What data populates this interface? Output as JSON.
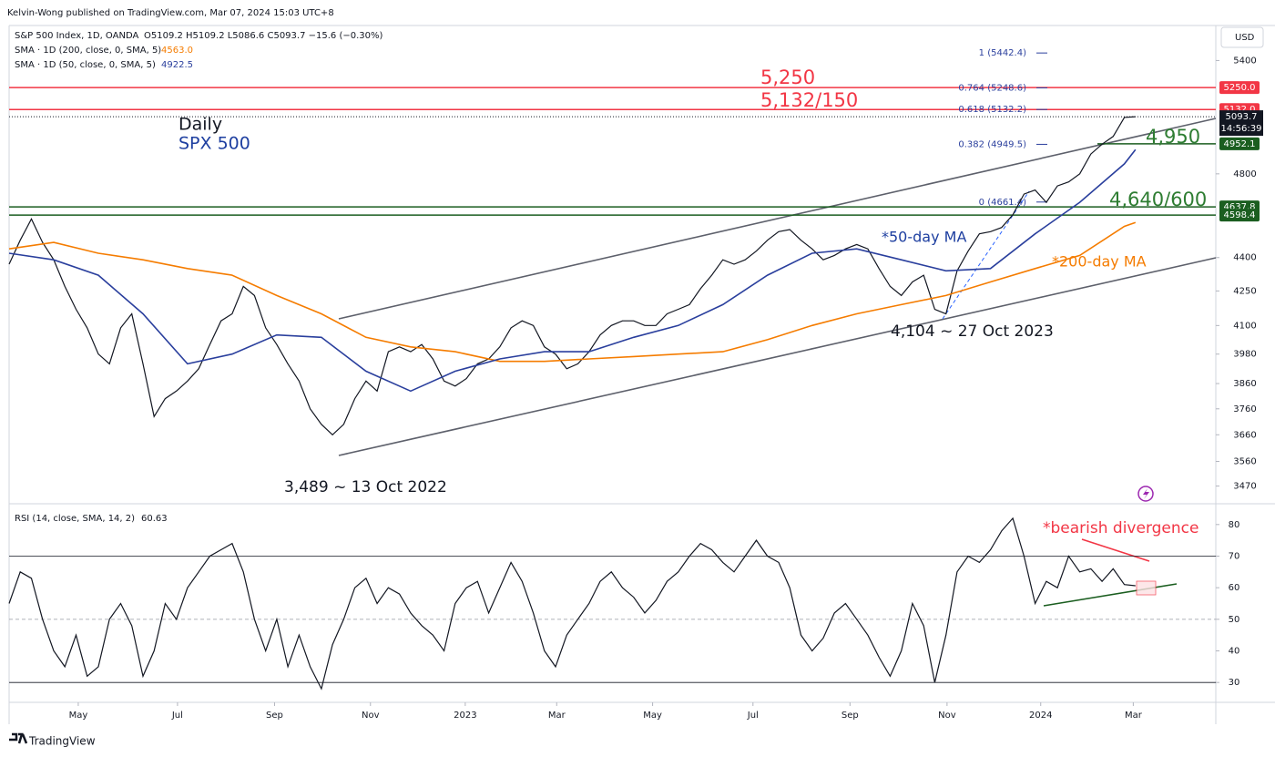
{
  "header": {
    "publisher": "Kelvin-Wong published on TradingView.com, Mar 07, 2024 15:03 UTC+8",
    "symbol": "S&P 500 Index, 1D, OANDA",
    "ohlc": "O5109.2 H5109.2 L5086.6 C5093.7 −15.6 (−0.30%)",
    "currency": "USD",
    "footer": "TradingView"
  },
  "chart_data": [
    {
      "type": "line",
      "log_scale": true,
      "grid": false,
      "xlim": [
        0,
        108.2
      ],
      "xticks": [
        {
          "value": 6.2,
          "label": "May"
        },
        {
          "value": 15.1,
          "label": "Jul"
        },
        {
          "value": 23.8,
          "label": "Sep"
        },
        {
          "value": 32.4,
          "label": "Nov"
        },
        {
          "value": 40.9,
          "label": "2023"
        },
        {
          "value": 49.1,
          "label": "Mar"
        },
        {
          "value": 57.7,
          "label": "May"
        },
        {
          "value": 66.7,
          "label": "Jul"
        },
        {
          "value": 75.4,
          "label": "Sep"
        },
        {
          "value": 84.1,
          "label": "Nov"
        },
        {
          "value": 92.5,
          "label": "2024"
        },
        {
          "value": 100.8,
          "label": "Mar"
        }
      ],
      "ylim": [
        3410,
        5600
      ],
      "yticks": [
        5400,
        4800,
        4400,
        4250,
        4100,
        3980,
        3860,
        3760,
        3660,
        3560,
        3470
      ],
      "x": [
        0,
        1,
        2,
        3,
        4,
        5,
        6,
        7,
        8,
        9,
        10,
        11,
        12,
        13,
        14,
        15,
        16,
        17,
        18,
        19,
        20,
        21,
        22,
        23,
        24,
        25,
        26,
        27,
        28,
        29,
        30,
        31,
        32,
        33,
        34,
        35,
        36,
        37,
        38,
        39,
        40,
        41,
        42,
        43,
        44,
        45,
        46,
        47,
        48,
        49,
        50,
        51,
        52,
        53,
        54,
        55,
        56,
        57,
        58,
        59,
        60,
        61,
        62,
        63,
        64,
        65,
        66,
        67,
        68,
        69,
        70,
        71,
        72,
        73,
        74,
        75,
        76,
        77,
        78,
        79,
        80,
        81,
        82,
        83,
        84,
        85,
        86,
        87,
        88,
        89,
        90,
        91,
        92,
        93,
        94,
        95,
        96,
        97,
        98,
        99,
        100,
        101
      ],
      "series": [
        {
          "name": "S&P 500 Index, 1D, OANDA",
          "color": "#131722",
          "values": [
            4370,
            4480,
            4580,
            4470,
            4390,
            4270,
            4170,
            4090,
            3980,
            3940,
            4090,
            4150,
            3940,
            3730,
            3800,
            3830,
            3870,
            3920,
            4020,
            4120,
            4150,
            4270,
            4230,
            4090,
            4020,
            3940,
            3870,
            3760,
            3700,
            3660,
            3700,
            3800,
            3870,
            3830,
            3990,
            4010,
            3990,
            4020,
            3960,
            3870,
            3850,
            3880,
            3940,
            3960,
            4010,
            4090,
            4120,
            4100,
            4010,
            3980,
            3920,
            3940,
            3990,
            4060,
            4100,
            4120,
            4120,
            4100,
            4100,
            4150,
            4170,
            4190,
            4260,
            4320,
            4390,
            4370,
            4390,
            4430,
            4480,
            4520,
            4530,
            4480,
            4440,
            4390,
            4410,
            4440,
            4460,
            4440,
            4350,
            4270,
            4230,
            4290,
            4320,
            4170,
            4150,
            4340,
            4430,
            4510,
            4520,
            4540,
            4600,
            4700,
            4720,
            4660,
            4740,
            4760,
            4800,
            4900,
            4950,
            4990,
            5090,
            5093.7
          ],
          "last_label": "5093.7",
          "countdown": "14:56:39"
        },
        {
          "name": "SMA · 1D (200, close, 0, SMA, 5)",
          "color": "#f57c00",
          "last_label": "4563.0",
          "x": [
            0,
            4,
            8,
            12,
            16,
            20,
            24,
            28,
            32,
            36,
            40,
            44,
            48,
            52,
            56,
            60,
            64,
            68,
            72,
            76,
            80,
            84,
            88,
            92,
            96,
            100,
            101
          ],
          "values": [
            4440,
            4470,
            4420,
            4390,
            4350,
            4320,
            4230,
            4150,
            4050,
            4010,
            3990,
            3950,
            3950,
            3960,
            3970,
            3980,
            3990,
            4040,
            4100,
            4150,
            4190,
            4230,
            4290,
            4350,
            4410,
            4545,
            4563
          ]
        },
        {
          "name": "SMA · 1D (50, close, 0, SMA, 5)",
          "color": "#2a3f9d",
          "last_label": "4922.5",
          "x": [
            0,
            4,
            8,
            12,
            16,
            20,
            24,
            28,
            32,
            36,
            40,
            44,
            48,
            52,
            56,
            60,
            64,
            68,
            72,
            76,
            80,
            84,
            88,
            92,
            96,
            100,
            101
          ],
          "values": [
            4420,
            4390,
            4320,
            4150,
            3940,
            3980,
            4060,
            4050,
            3910,
            3830,
            3910,
            3960,
            3990,
            3990,
            4050,
            4100,
            4190,
            4320,
            4420,
            4440,
            4390,
            4340,
            4350,
            4510,
            4660,
            4850,
            4922.5
          ]
        }
      ],
      "levels": [
        {
          "value": 5250,
          "label": "5250.0",
          "color": "#f23645"
        },
        {
          "value": 5132,
          "label": "5132.0",
          "color": "#f23645"
        },
        {
          "value": 4952.1,
          "label": "4952.1",
          "color": "#1b5e20"
        },
        {
          "value": 4637.8,
          "label": "4637.8",
          "color": "#1b5e20"
        },
        {
          "value": 4598.4,
          "label": "4598.4",
          "color": "#1b5e20"
        }
      ],
      "fib": [
        {
          "value": 5442.4,
          "label": "1 (5442.4)"
        },
        {
          "value": 5248.6,
          "label": "0.764 (5248.6)"
        },
        {
          "value": 5132.2,
          "label": "0.618 (5132.2)"
        },
        {
          "value": 4949.5,
          "label": "0.382 (4949.5)"
        },
        {
          "value": 4661.4,
          "label": "0 (4661.4)"
        }
      ],
      "annotations": [
        "5,250",
        "5,132/150",
        "Daily",
        "SPX 500",
        "4,950",
        "4,640/600",
        "*50-day MA",
        "*200-day MA",
        "4,104 ~ 27 Oct 2023",
        "3,489 ~ 13 Oct 2022"
      ]
    },
    {
      "type": "line",
      "grid": false,
      "ylim": [
        24,
        86
      ],
      "yticks": [
        80,
        70,
        60,
        50,
        40,
        30
      ],
      "x": [
        0,
        1,
        2,
        3,
        4,
        5,
        6,
        7,
        8,
        9,
        10,
        11,
        12,
        13,
        14,
        15,
        16,
        17,
        18,
        19,
        20,
        21,
        22,
        23,
        24,
        25,
        26,
        27,
        28,
        29,
        30,
        31,
        32,
        33,
        34,
        35,
        36,
        37,
        38,
        39,
        40,
        41,
        42,
        43,
        44,
        45,
        46,
        47,
        48,
        49,
        50,
        51,
        52,
        53,
        54,
        55,
        56,
        57,
        58,
        59,
        60,
        61,
        62,
        63,
        64,
        65,
        66,
        67,
        68,
        69,
        70,
        71,
        72,
        73,
        74,
        75,
        76,
        77,
        78,
        79,
        80,
        81,
        82,
        83,
        84,
        85,
        86,
        87,
        88,
        89,
        90,
        91,
        92,
        93,
        94,
        95,
        96,
        97,
        98,
        99,
        100,
        101
      ],
      "series": [
        {
          "name": "RSI (14, close, SMA, 14, 2)",
          "color": "#131722",
          "last_label": "60.63",
          "values": [
            55,
            65,
            63,
            50,
            40,
            35,
            45,
            32,
            35,
            50,
            55,
            48,
            32,
            40,
            55,
            50,
            60,
            65,
            70,
            72,
            74,
            65,
            50,
            40,
            50,
            35,
            45,
            35,
            28,
            42,
            50,
            60,
            63,
            55,
            60,
            58,
            52,
            48,
            45,
            40,
            55,
            60,
            62,
            52,
            60,
            68,
            62,
            52,
            40,
            35,
            45,
            50,
            55,
            62,
            65,
            60,
            57,
            52,
            56,
            62,
            65,
            70,
            74,
            72,
            68,
            65,
            70,
            75,
            70,
            68,
            60,
            45,
            40,
            44,
            52,
            55,
            50,
            45,
            38,
            32,
            40,
            55,
            48,
            30,
            45,
            65,
            70,
            68,
            72,
            78,
            82,
            70,
            55,
            62,
            60,
            70,
            65,
            66,
            62,
            66,
            61,
            60.63
          ]
        }
      ],
      "bands": [
        70,
        50,
        30
      ],
      "annotations": [
        "*bearish divergence"
      ]
    }
  ]
}
